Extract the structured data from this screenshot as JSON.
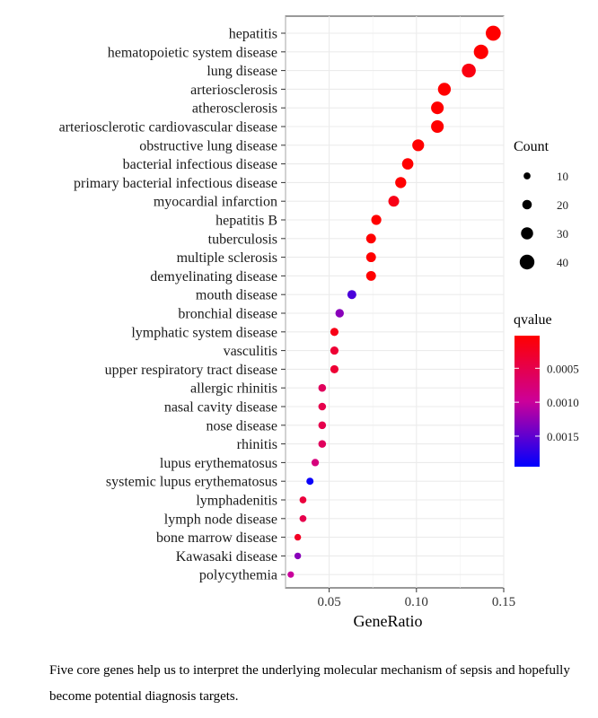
{
  "chart_data": {
    "type": "scatter",
    "title": "",
    "xlabel": "GeneRatio",
    "ylabel": "",
    "xlim": [
      0.025,
      0.15
    ],
    "xticks": [
      0.05,
      0.1,
      0.15
    ],
    "xtick_labels": [
      "0.05",
      "0.10",
      "0.15"
    ],
    "grid": true,
    "categories": [
      "hepatitis",
      "hematopoietic system disease",
      "lung disease",
      "arteriosclerosis",
      "atherosclerosis",
      "arteriosclerotic cardiovascular disease",
      "obstructive lung disease",
      "bacterial infectious disease",
      "primary bacterial infectious disease",
      "myocardial infarction",
      "hepatitis B",
      "tuberculosis",
      "multiple sclerosis",
      "demyelinating disease",
      "mouth disease",
      "bronchial disease",
      "lymphatic system disease",
      "vasculitis",
      "upper respiratory tract disease",
      "allergic rhinitis",
      "nasal cavity disease",
      "nose disease",
      "rhinitis",
      "lupus erythematosus",
      "systemic lupus erythematosus",
      "lymphadenitis",
      "lymph node disease",
      "bone marrow disease",
      "Kawasaki disease",
      "polycythemia"
    ],
    "gene_ratio": [
      0.144,
      0.137,
      0.13,
      0.116,
      0.112,
      0.112,
      0.101,
      0.095,
      0.091,
      0.087,
      0.077,
      0.074,
      0.074,
      0.074,
      0.063,
      0.056,
      0.053,
      0.053,
      0.053,
      0.046,
      0.046,
      0.046,
      0.046,
      0.042,
      0.039,
      0.035,
      0.035,
      0.032,
      0.032,
      0.028
    ],
    "count": [
      41,
      39,
      37,
      33,
      32,
      32,
      29,
      27,
      26,
      25,
      22,
      21,
      21,
      21,
      18,
      16,
      15,
      15,
      15,
      13,
      13,
      13,
      13,
      12,
      11,
      10,
      10,
      9,
      9,
      8
    ],
    "qvalue": [
      2e-05,
      2e-05,
      0.00012,
      2e-05,
      2e-05,
      2e-05,
      2e-05,
      2e-05,
      2e-05,
      0.00016,
      2e-05,
      2e-05,
      2e-05,
      2e-05,
      0.0016,
      0.0013,
      0.00016,
      0.00035,
      0.00035,
      0.0006,
      0.0005,
      0.0005,
      0.0006,
      0.0008,
      0.0019,
      0.0004,
      0.0005,
      0.00025,
      0.0013,
      0.001
    ],
    "legend_size": {
      "title": "Count",
      "entries": [
        {
          "label": "10",
          "value": 10
        },
        {
          "label": "20",
          "value": 20
        },
        {
          "label": "30",
          "value": 30
        },
        {
          "label": "40",
          "value": 40
        }
      ]
    },
    "legend_color": {
      "title": "qvalue",
      "ticks": [
        {
          "label": "0.0005",
          "value": 0.0005
        },
        {
          "label": "0.0010",
          "value": 0.001
        },
        {
          "label": "0.0015",
          "value": 0.0015
        }
      ],
      "range": [
        2e-05,
        0.00195
      ],
      "low_color": "#ff0000",
      "high_color": "#0000ff"
    },
    "panel_background": "#ffffff",
    "gridline_color": "#ebebeb",
    "legend_placement": "right"
  },
  "caption": "Five core genes help us to interpret the underlying molecular mechanism of sepsis and hopefully become potential diagnosis targets."
}
